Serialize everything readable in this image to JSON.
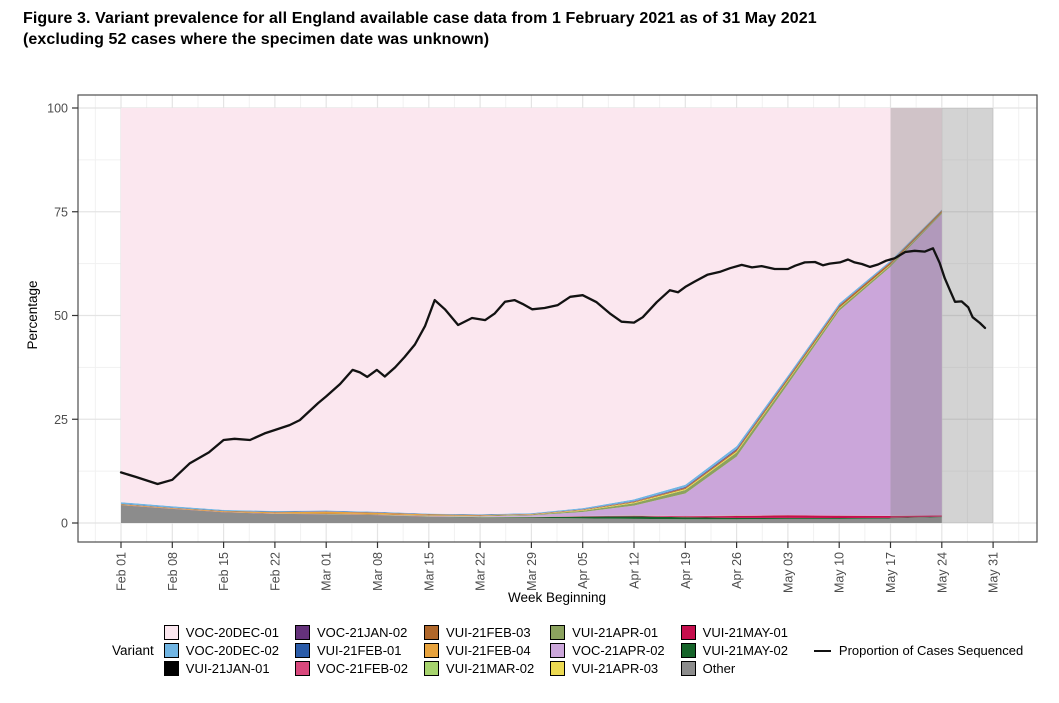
{
  "title": {
    "line1": "Figure 3. Variant prevalence for all England available case data from 1 February 2021 as of 31 May 2021",
    "line2": "(excluding 52 cases where the specimen date was unknown)"
  },
  "chart_data": {
    "type": "area",
    "xlabel": "Week Beginning",
    "ylabel": "Percentage",
    "ylim": [
      0,
      100
    ],
    "y_ticks": [
      0,
      25,
      50,
      75,
      100
    ],
    "x_tick_labels": [
      "Feb 01",
      "Feb 08",
      "Feb 15",
      "Feb 22",
      "Mar 01",
      "Mar 08",
      "Mar 15",
      "Mar 22",
      "Mar 29",
      "Apr 05",
      "Apr 12",
      "Apr 19",
      "Apr 26",
      "May 03",
      "May 10",
      "May 17",
      "May 24",
      "May 31"
    ],
    "grid": "on",
    "legend_title": "Variant",
    "legend_position": "bottom",
    "variants": [
      {
        "name": "VOC-20DEC-01",
        "color": "#fbe7ef"
      },
      {
        "name": "VOC-20DEC-02",
        "color": "#70b5e3"
      },
      {
        "name": "VUI-21JAN-01",
        "color": "#000000"
      },
      {
        "name": "VOC-21JAN-02",
        "color": "#65327b"
      },
      {
        "name": "VUI-21FEB-01",
        "color": "#2a5ba8"
      },
      {
        "name": "VOC-21FEB-02",
        "color": "#d8487c"
      },
      {
        "name": "VUI-21FEB-03",
        "color": "#b0672a"
      },
      {
        "name": "VUI-21FEB-04",
        "color": "#e8a33d"
      },
      {
        "name": "VUI-21MAR-02",
        "color": "#a7d46e"
      },
      {
        "name": "VUI-21APR-01",
        "color": "#8ba25e"
      },
      {
        "name": "VOC-21APR-02",
        "color": "#cba6da"
      },
      {
        "name": "VUI-21APR-03",
        "color": "#ecda52"
      },
      {
        "name": "VUI-21MAY-01",
        "color": "#c50e4d"
      },
      {
        "name": "VUI-21MAY-02",
        "color": "#156329"
      },
      {
        "name": "Other",
        "color": "#8c8c8c"
      }
    ],
    "stack_weeks": [
      "Feb 01",
      "Feb 08",
      "Feb 15",
      "Feb 22",
      "Mar 01",
      "Mar 08",
      "Mar 15",
      "Mar 22",
      "Mar 29",
      "Apr 05",
      "Apr 12",
      "Apr 19",
      "Apr 26",
      "May 03",
      "May 10",
      "May 17",
      "May 24"
    ],
    "stack_series": [
      {
        "name": "Other",
        "values": [
          4.3,
          3.4,
          2.6,
          2.2,
          2.1,
          1.9,
          1.5,
          1.3,
          1.2,
          1.1,
          1.0,
          0.9,
          0.9,
          1.0,
          1.0,
          1.1,
          1.4
        ]
      },
      {
        "name": "VUI-21MAY-02",
        "values": [
          0,
          0,
          0,
          0,
          0,
          0,
          0.05,
          0.1,
          0.2,
          0.45,
          0.6,
          0.5,
          0.35,
          0.25,
          0.2,
          0.15,
          0.1
        ]
      },
      {
        "name": "VUI-21MAY-01",
        "values": [
          0,
          0,
          0,
          0,
          0,
          0,
          0,
          0,
          0,
          0.05,
          0.1,
          0.2,
          0.45,
          0.6,
          0.55,
          0.45,
          0.35
        ]
      },
      {
        "name": "VOC-21FEB-02",
        "values": [
          0.02,
          0.02,
          0.03,
          0.04,
          0.05,
          0.05,
          0.04,
          0.03,
          0.03,
          0.05,
          0.05,
          0.05,
          0.05,
          0.04,
          0.03,
          0.02,
          0.02
        ]
      },
      {
        "name": "VUI-21MAR-02",
        "values": [
          0,
          0,
          0,
          0.02,
          0.05,
          0.08,
          0.08,
          0.06,
          0.05,
          0.05,
          0.05,
          0.05,
          0.05,
          0.03,
          0.02,
          0.02,
          0.01
        ]
      },
      {
        "name": "VOC-21APR-02",
        "values": [
          0,
          0,
          0,
          0,
          0,
          0,
          0.05,
          0.12,
          0.35,
          0.95,
          2.4,
          5.4,
          14.2,
          31.5,
          49.3,
          60.0,
          72.6
        ]
      },
      {
        "name": "VUI-21APR-01",
        "values": [
          0,
          0,
          0,
          0,
          0,
          0,
          0.05,
          0.1,
          0.15,
          0.3,
          0.55,
          0.85,
          1.0,
          0.8,
          0.6,
          0.45,
          0.3
        ]
      },
      {
        "name": "VUI-21APR-03",
        "values": [
          0,
          0,
          0,
          0,
          0,
          0,
          0,
          0.02,
          0.05,
          0.12,
          0.2,
          0.25,
          0.25,
          0.2,
          0.15,
          0.1,
          0.05
        ]
      },
      {
        "name": "VUI-21FEB-03",
        "values": [
          0.05,
          0.05,
          0.05,
          0.06,
          0.1,
          0.1,
          0.1,
          0.08,
          0.08,
          0.1,
          0.15,
          0.22,
          0.3,
          0.38,
          0.45,
          0.5,
          0.45
        ]
      },
      {
        "name": "VUI-21FEB-04",
        "values": [
          0.15,
          0.15,
          0.18,
          0.28,
          0.45,
          0.35,
          0.2,
          0.1,
          0.06,
          0.05,
          0.05,
          0.05,
          0.05,
          0.04,
          0.03,
          0.02,
          0.02
        ]
      },
      {
        "name": "VOC-21JAN-02",
        "values": [
          0.03,
          0.03,
          0.03,
          0.04,
          0.05,
          0.05,
          0.04,
          0.03,
          0.03,
          0.06,
          0.1,
          0.15,
          0.2,
          0.15,
          0.1,
          0.08,
          0.05
        ]
      },
      {
        "name": "VUI-21FEB-01",
        "values": [
          0.04,
          0.04,
          0.04,
          0.04,
          0.05,
          0.05,
          0.04,
          0.03,
          0.03,
          0.03,
          0.04,
          0.05,
          0.06,
          0.05,
          0.04,
          0.03,
          0.02
        ]
      },
      {
        "name": "VUI-21JAN-01",
        "values": [
          0.02,
          0.02,
          0.02,
          0.02,
          0.02,
          0.02,
          0.02,
          0.01,
          0.01,
          0.01,
          0.01,
          0.01,
          0.01,
          0.01,
          0.01,
          0.01,
          0.01
        ]
      },
      {
        "name": "VOC-20DEC-02",
        "values": [
          0.4,
          0.32,
          0.22,
          0.18,
          0.15,
          0.12,
          0.1,
          0.12,
          0.15,
          0.25,
          0.4,
          0.55,
          0.65,
          0.5,
          0.45,
          0.3,
          0.15
        ]
      },
      {
        "name": "VOC-20DEC-01",
        "fill_remainder_to": 100
      }
    ],
    "shaded_region": {
      "from_label": "May 17",
      "to_label": "May 31",
      "from_day": 105,
      "to_day": 119,
      "color": "#808080",
      "opacity": 0.35
    },
    "sequenced_line": {
      "label": "Proportion of Cases Sequenced",
      "color": "#121212",
      "points_day_pct": [
        [
          0,
          12.2
        ],
        [
          2,
          11.1
        ],
        [
          5,
          9.4
        ],
        [
          7,
          10.4
        ],
        [
          9.4,
          14.4
        ],
        [
          12,
          17
        ],
        [
          14,
          20
        ],
        [
          15.5,
          20.3
        ],
        [
          17.6,
          20
        ],
        [
          19.6,
          21.6
        ],
        [
          21,
          22.4
        ],
        [
          23,
          23.6
        ],
        [
          24.4,
          24.8
        ],
        [
          26.9,
          28.9
        ],
        [
          28,
          30.5
        ],
        [
          29.9,
          33.5
        ],
        [
          31.6,
          36.9
        ],
        [
          32.6,
          36.3
        ],
        [
          33.6,
          35.2
        ],
        [
          34.9,
          36.9
        ],
        [
          36,
          35.3
        ],
        [
          37.4,
          37.5
        ],
        [
          38.7,
          40
        ],
        [
          40.1,
          43
        ],
        [
          41.5,
          47.5
        ],
        [
          42.8,
          53.7
        ],
        [
          44.2,
          51.5
        ],
        [
          46,
          47.7
        ],
        [
          47.9,
          49.4
        ],
        [
          49.7,
          48.9
        ],
        [
          51,
          50.5
        ],
        [
          52.4,
          53.3
        ],
        [
          53.7,
          53.7
        ],
        [
          54.8,
          52.8
        ],
        [
          56.1,
          51.5
        ],
        [
          57.8,
          51.8
        ],
        [
          59.6,
          52.5
        ],
        [
          61.3,
          54.5
        ],
        [
          63,
          54.9
        ],
        [
          64.9,
          53.2
        ],
        [
          66.7,
          50.5
        ],
        [
          68.3,
          48.5
        ],
        [
          70,
          48.3
        ],
        [
          71.2,
          49.6
        ],
        [
          73.1,
          53.2
        ],
        [
          74.9,
          56.1
        ],
        [
          76,
          55.6
        ],
        [
          77,
          56.9
        ],
        [
          78.3,
          58.2
        ],
        [
          80,
          59.8
        ],
        [
          81.7,
          60.5
        ],
        [
          83.1,
          61.4
        ],
        [
          84.7,
          62.2
        ],
        [
          86.1,
          61.6
        ],
        [
          87.4,
          61.9
        ],
        [
          89.2,
          61.2
        ],
        [
          91,
          61.2
        ],
        [
          92,
          62
        ],
        [
          93.3,
          62.8
        ],
        [
          94.7,
          62.9
        ],
        [
          95.8,
          62.1
        ],
        [
          96.7,
          62.5
        ],
        [
          98.1,
          62.8
        ],
        [
          99.2,
          63.5
        ],
        [
          100.1,
          62.8
        ],
        [
          101.1,
          62.4
        ],
        [
          102.2,
          61.7
        ],
        [
          103.3,
          62.3
        ],
        [
          104.4,
          63.2
        ],
        [
          105.6,
          63.8
        ],
        [
          107,
          65.3
        ],
        [
          108.3,
          65.6
        ],
        [
          109.7,
          65.4
        ],
        [
          110.8,
          66.2
        ],
        [
          111.7,
          62.7
        ],
        [
          112.4,
          59
        ],
        [
          113.1,
          56.1
        ],
        [
          113.8,
          53.3
        ],
        [
          114.7,
          53.4
        ],
        [
          115.6,
          52
        ],
        [
          116.2,
          49.6
        ],
        [
          117.2,
          48.2
        ],
        [
          117.9,
          47
        ]
      ]
    }
  }
}
